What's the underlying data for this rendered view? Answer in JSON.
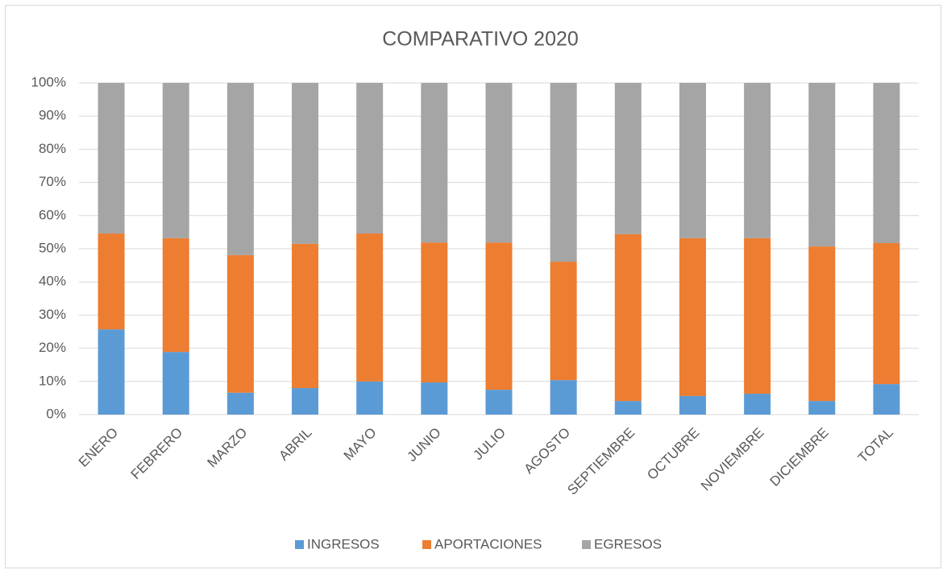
{
  "chart_data": {
    "type": "stacked_bar_percent",
    "title": "COMPARATIVO 2020",
    "categories": [
      "ENERO",
      "FEBRERO",
      "MARZO",
      "ABRIL",
      "MAYO",
      "JUNIO",
      "JULIO",
      "AGOSTO",
      "SEPTIEMBRE",
      "OCTUBRE",
      "NOVIEMBRE",
      "DICIEMBRE",
      "TOTAL"
    ],
    "series": [
      {
        "name": "INGRESOS",
        "color": "#5b9bd5",
        "values": [
          25.7,
          18.9,
          6.6,
          8.0,
          10.0,
          9.7,
          7.5,
          10.4,
          4.1,
          5.6,
          6.3,
          4.1,
          9.2
        ]
      },
      {
        "name": "APORTACIONES",
        "color": "#ed7d31",
        "values": [
          28.9,
          34.3,
          41.5,
          43.5,
          44.6,
          42.2,
          44.4,
          35.7,
          50.3,
          47.6,
          46.9,
          46.6,
          42.5
        ]
      },
      {
        "name": "EGRESOS",
        "color": "#a5a5a5",
        "values": [
          45.4,
          46.8,
          51.9,
          48.5,
          45.4,
          48.1,
          48.1,
          53.9,
          45.6,
          46.8,
          46.8,
          49.3,
          48.3
        ]
      }
    ],
    "ylim": [
      0,
      100
    ],
    "yticks": [
      {
        "value": 0,
        "label": "0%"
      },
      {
        "value": 10,
        "label": "10%"
      },
      {
        "value": 20,
        "label": "20%"
      },
      {
        "value": 30,
        "label": "30%"
      },
      {
        "value": 40,
        "label": "40%"
      },
      {
        "value": 50,
        "label": "50%"
      },
      {
        "value": 60,
        "label": "60%"
      },
      {
        "value": 70,
        "label": "70%"
      },
      {
        "value": 80,
        "label": "80%"
      },
      {
        "value": 90,
        "label": "90%"
      },
      {
        "value": 100,
        "label": "100%"
      }
    ],
    "grid": true,
    "legend": "bottom"
  }
}
